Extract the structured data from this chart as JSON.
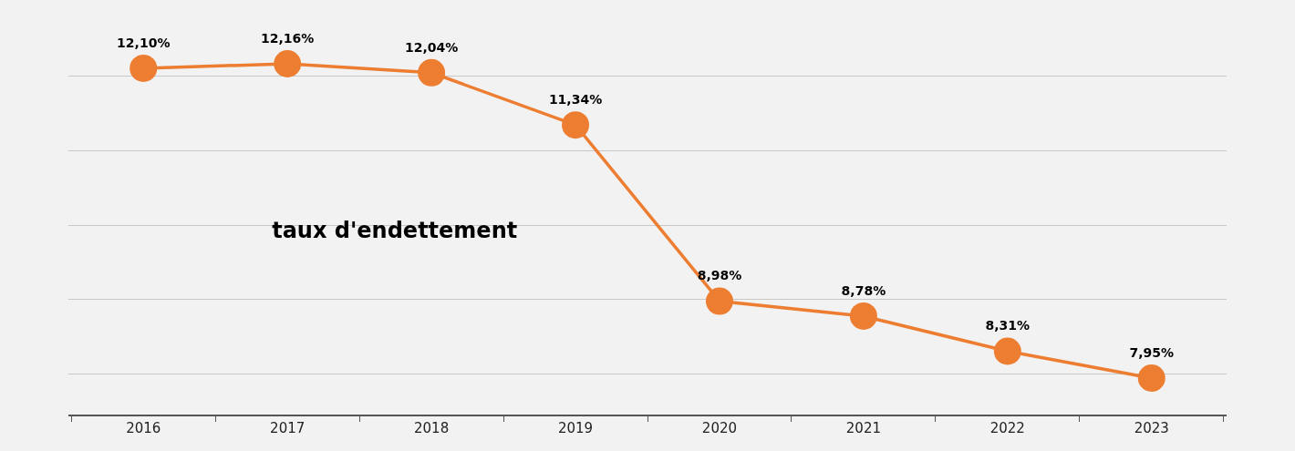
{
  "chart_data": {
    "type": "line",
    "title": "taux d'endettement",
    "categories": [
      "2016",
      "2017",
      "2018",
      "2019",
      "2020",
      "2021",
      "2022",
      "2023"
    ],
    "values": [
      12.1,
      12.16,
      12.04,
      11.34,
      8.98,
      8.78,
      8.31,
      7.95
    ],
    "value_labels": [
      "12,10%",
      "12,16%",
      "12,04%",
      "11,34%",
      "8,98%",
      "8,78%",
      "8,31%",
      "7,95%"
    ],
    "color": "#ed7d31",
    "marker": "circle",
    "line_style": "solid",
    "grid": "y",
    "tick_labels": "x"
  }
}
